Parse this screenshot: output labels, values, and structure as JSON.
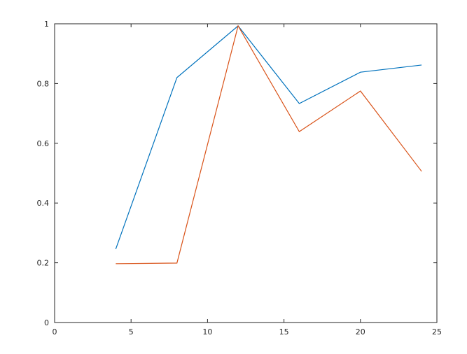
{
  "chart_data": {
    "type": "line",
    "title": "",
    "xlabel": "",
    "ylabel": "",
    "xlim": [
      0,
      25
    ],
    "ylim": [
      0,
      1
    ],
    "xticks": [
      "0",
      "5",
      "10",
      "15",
      "20",
      "25"
    ],
    "yticks": [
      "0",
      "0.2",
      "0.4",
      "0.6",
      "0.8",
      "1"
    ],
    "grid": false,
    "x": [
      4,
      8,
      12,
      16,
      20,
      24
    ],
    "series": [
      {
        "color": "#0072bd",
        "values": [
          0.246,
          0.82,
          0.993,
          0.733,
          0.838,
          0.862
        ]
      },
      {
        "color": "#d95319",
        "values": [
          0.197,
          0.199,
          0.993,
          0.639,
          0.775,
          0.506
        ]
      }
    ]
  }
}
